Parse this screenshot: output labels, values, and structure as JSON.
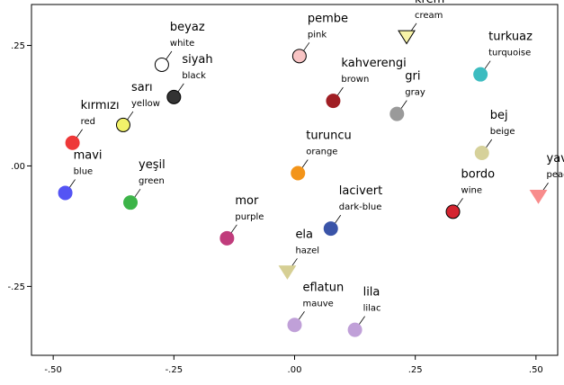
{
  "chart_data": {
    "type": "scatter",
    "title": "",
    "xlabel": "",
    "ylabel": "",
    "xlim": [
      -0.545,
      0.545
    ],
    "ylim": [
      -0.393,
      0.335
    ],
    "x_ticks": [
      -0.5,
      -0.25,
      0.0,
      0.25,
      0.5
    ],
    "x_tick_labels": [
      "-.50",
      "-.25",
      ".00",
      ".25",
      ".50"
    ],
    "y_ticks": [
      0.25,
      0.0,
      -0.25
    ],
    "y_tick_labels": [
      ".25",
      ".00",
      "-.25"
    ],
    "grid": false,
    "legend": "none",
    "points": [
      {
        "term": "beyaz",
        "gloss": "white",
        "x": -0.275,
        "y": 0.21,
        "color": "#ffffff",
        "stroke": "#000000",
        "marker": "circle",
        "label_side": "right"
      },
      {
        "term": "siyah",
        "gloss": "black",
        "x": -0.25,
        "y": 0.143,
        "color": "#333333",
        "stroke": "#000000",
        "marker": "circle",
        "label_side": "right"
      },
      {
        "term": "sarı",
        "gloss": "yellow",
        "x": -0.355,
        "y": 0.085,
        "color": "#f2f26a",
        "stroke": "#000000",
        "marker": "circle",
        "label_side": "right"
      },
      {
        "term": "kırmızı",
        "gloss": "red",
        "x": -0.46,
        "y": 0.048,
        "color": "#ee3838",
        "stroke": "#ee3838",
        "marker": "circle",
        "label_side": "right"
      },
      {
        "term": "mavi",
        "gloss": "blue",
        "x": -0.475,
        "y": -0.056,
        "color": "#5454f4",
        "stroke": "#5454f4",
        "marker": "circle",
        "label_side": "right"
      },
      {
        "term": "yeşil",
        "gloss": "green",
        "x": -0.34,
        "y": -0.076,
        "color": "#3cb448",
        "stroke": "#3cb448",
        "marker": "circle",
        "label_side": "right"
      },
      {
        "term": "mor",
        "gloss": "purple",
        "x": -0.14,
        "y": -0.15,
        "color": "#c03c7c",
        "stroke": "#c03c7c",
        "marker": "circle",
        "label_side": "right"
      },
      {
        "term": "pembe",
        "gloss": "pink",
        "x": 0.01,
        "y": 0.228,
        "color": "#f8c4c4",
        "stroke": "#000000",
        "marker": "circle",
        "label_side": "right"
      },
      {
        "term": "kahverengi",
        "gloss": "brown",
        "x": 0.08,
        "y": 0.135,
        "color": "#a01e24",
        "stroke": "#a01e24",
        "marker": "circle",
        "label_side": "right"
      },
      {
        "term": "krem",
        "gloss": "cream",
        "x": 0.232,
        "y": 0.268,
        "color": "#f8f4a8",
        "stroke": "#000000",
        "marker": "triangle",
        "label_side": "right"
      },
      {
        "term": "turkuaz",
        "gloss": "turquoise",
        "x": 0.385,
        "y": 0.19,
        "color": "#3cbcc0",
        "stroke": "#3cbcc0",
        "marker": "circle",
        "label_side": "right"
      },
      {
        "term": "gri",
        "gloss": "gray",
        "x": 0.212,
        "y": 0.108,
        "color": "#9a9a9a",
        "stroke": "#9a9a9a",
        "marker": "circle",
        "label_side": "right"
      },
      {
        "term": "bej",
        "gloss": "beige",
        "x": 0.388,
        "y": 0.027,
        "color": "#d6d19a",
        "stroke": "#d6d19a",
        "marker": "circle",
        "label_side": "right"
      },
      {
        "term": "turuncu",
        "gloss": "orange",
        "x": 0.007,
        "y": -0.015,
        "color": "#f39419",
        "stroke": "#f39419",
        "marker": "circle",
        "label_side": "right"
      },
      {
        "term": "bordo",
        "gloss": "wine",
        "x": 0.328,
        "y": -0.095,
        "color": "#d42430",
        "stroke": "#000000",
        "marker": "circle",
        "label_side": "right"
      },
      {
        "term": "yavruağzı",
        "gloss": "peach",
        "x": 0.505,
        "y": -0.063,
        "color": "#f88c8c",
        "stroke": "#f88c8c",
        "marker": "triangle",
        "label_side": "right"
      },
      {
        "term": "lacivert",
        "gloss": "dark-blue",
        "x": 0.075,
        "y": -0.13,
        "color": "#3a54a8",
        "stroke": "#3a54a8",
        "marker": "circle",
        "label_side": "right"
      },
      {
        "term": "ela",
        "gloss": "hazel",
        "x": -0.015,
        "y": -0.22,
        "color": "#d6cf94",
        "stroke": "#d6cf94",
        "marker": "triangle",
        "label_side": "right"
      },
      {
        "term": "eflatun",
        "gloss": "mauve",
        "x": 0.0,
        "y": -0.33,
        "color": "#c0a0d8",
        "stroke": "#c0a0d8",
        "marker": "circle",
        "label_side": "right"
      },
      {
        "term": "lila",
        "gloss": "lilac",
        "x": 0.125,
        "y": -0.34,
        "color": "#c0a0d8",
        "stroke": "#c0a0d8",
        "marker": "circle",
        "label_side": "right"
      }
    ]
  }
}
